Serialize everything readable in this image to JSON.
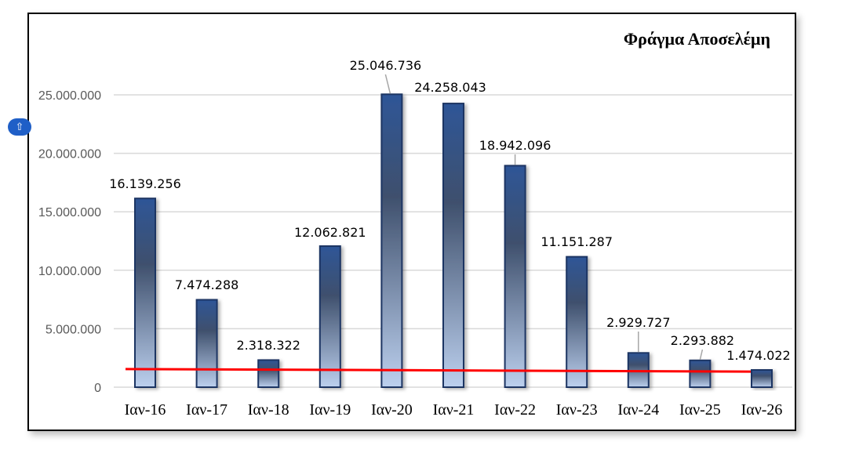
{
  "chart_data": {
    "type": "bar",
    "title": "Φράγμα Αποσελέμη",
    "xlabel": "",
    "ylabel": "",
    "categories": [
      "Ιαν-16",
      "Ιαν-17",
      "Ιαν-18",
      "Ιαν-19",
      "Ιαν-20",
      "Ιαν-21",
      "Ιαν-22",
      "Ιαν-23",
      "Ιαν-24",
      "Ιαν-25",
      "Ιαν-26"
    ],
    "values": [
      16139256,
      7474288,
      2318322,
      12062821,
      25046736,
      24258043,
      18942096,
      11151287,
      2929727,
      2293882,
      1474022
    ],
    "data_labels": [
      "16.139.256",
      "7.474.288",
      "2.318.322",
      "12.062.821",
      "25.046.736",
      "24.258.043",
      "18.942.096",
      "11.151.287",
      "2.929.727",
      "2.293.882",
      "1.474.022"
    ],
    "ylim": [
      0,
      25000000
    ],
    "yticks": [
      0,
      5000000,
      10000000,
      15000000,
      20000000,
      25000000
    ],
    "ytick_labels": [
      "0",
      "5.000.000",
      "10.000.000",
      "15.000.000",
      "20.000.000",
      "25.000.000"
    ],
    "grid": true,
    "trendline": {
      "type": "linear",
      "start": 1550000,
      "end": 1330000,
      "color": "#ff0000"
    },
    "colors": {
      "bar_top": "#2e5597",
      "bar_mid": "#3f506d",
      "bar_bottom": "#bcd0ee",
      "bar_border": "#1f3564",
      "grid": "#d9d9d9"
    }
  },
  "overlay": {
    "icon": "upload-arrow-icon"
  }
}
